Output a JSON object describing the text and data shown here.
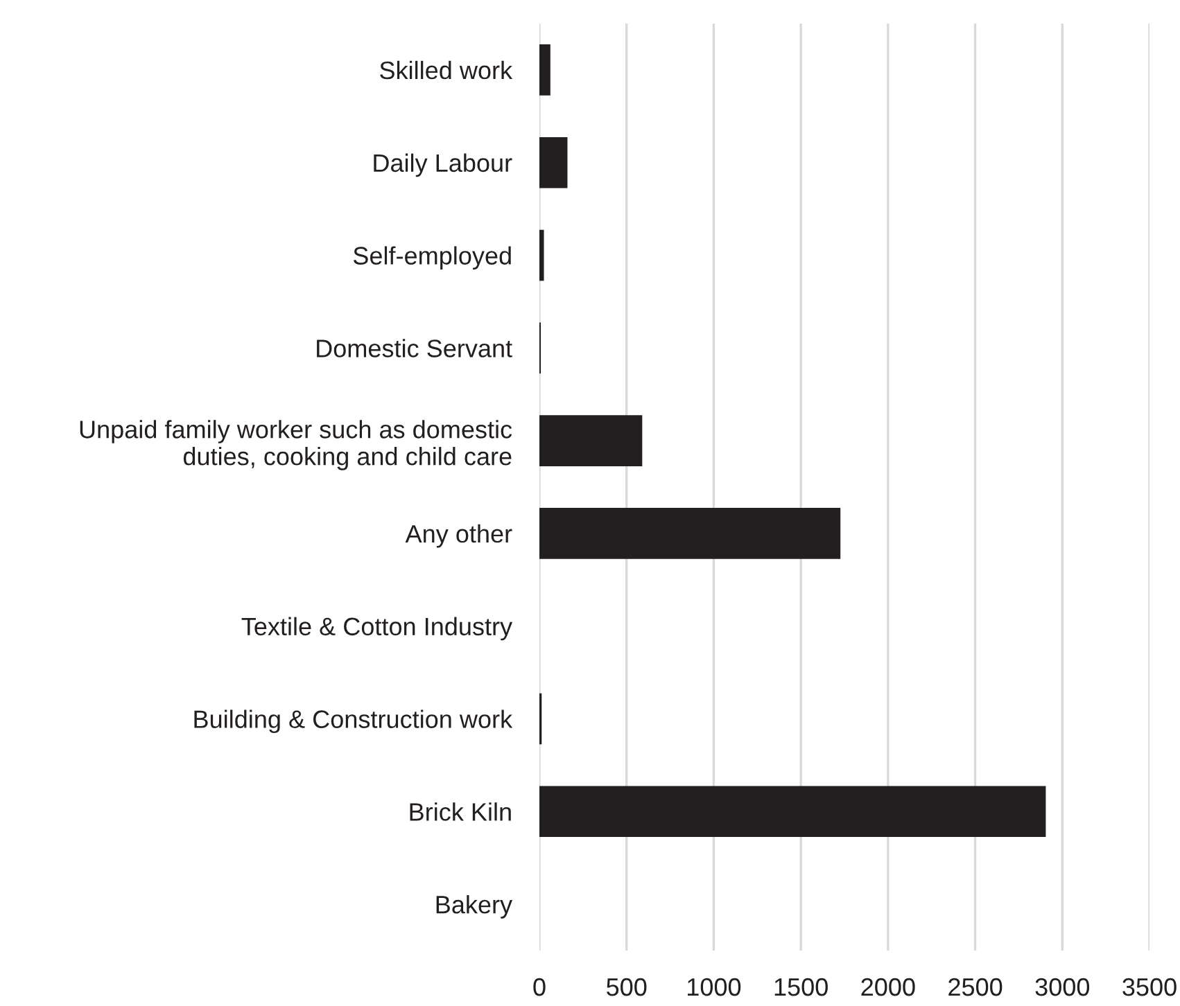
{
  "chart_data": {
    "type": "bar",
    "orientation": "horizontal",
    "categories": [
      "Skilled work",
      "Daily Labour",
      "Self-employed",
      "Domestic Servant",
      "Unpaid family worker such as domestic\nduties, cooking and child care",
      "Any other",
      "Textile & Cotton Industry",
      "Building & Construction work",
      "Brick Kiln",
      "Bakery"
    ],
    "values": [
      63,
      161,
      26,
      8,
      590,
      1727,
      0,
      13,
      2905,
      0
    ],
    "color": "#231f20",
    "xlim": [
      0,
      3500
    ],
    "xticks": [
      0,
      500,
      1000,
      1500,
      2000,
      2500,
      3000,
      3500
    ],
    "grid": "x",
    "legend": false
  }
}
